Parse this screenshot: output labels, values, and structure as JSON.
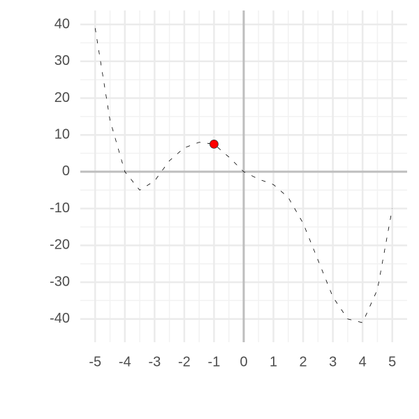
{
  "chart_data": {
    "type": "line",
    "x": [
      -5,
      -4.5,
      -4,
      -3.5,
      -3,
      -2.5,
      -2,
      -1.5,
      -1,
      -0.5,
      0,
      0.5,
      1,
      1.5,
      2,
      2.5,
      3,
      3.5,
      4,
      4.5,
      5
    ],
    "series": [
      {
        "color": "#000000",
        "values": [
          39,
          14,
          0,
          -5,
          -2.5,
          3,
          6.5,
          8,
          7.5,
          4,
          0,
          -2,
          -3.5,
          -7,
          -14,
          -24,
          -34,
          -40,
          -41,
          -32,
          -10
        ]
      }
    ],
    "point": {
      "x": -1,
      "y": 7.5,
      "color": "#ff0000"
    },
    "xlim": [
      -5.5,
      5.5
    ],
    "ylim": [
      -46.3,
      43.8
    ],
    "xticks": [
      -5,
      -4,
      -3,
      -2,
      -1,
      0,
      1,
      2,
      3,
      4,
      5
    ],
    "yticks": [
      -40,
      -30,
      -20,
      -10,
      0,
      10,
      20,
      30,
      40
    ],
    "grid": true,
    "minor_grid": true,
    "zero_lines": true,
    "dashed": true
  }
}
